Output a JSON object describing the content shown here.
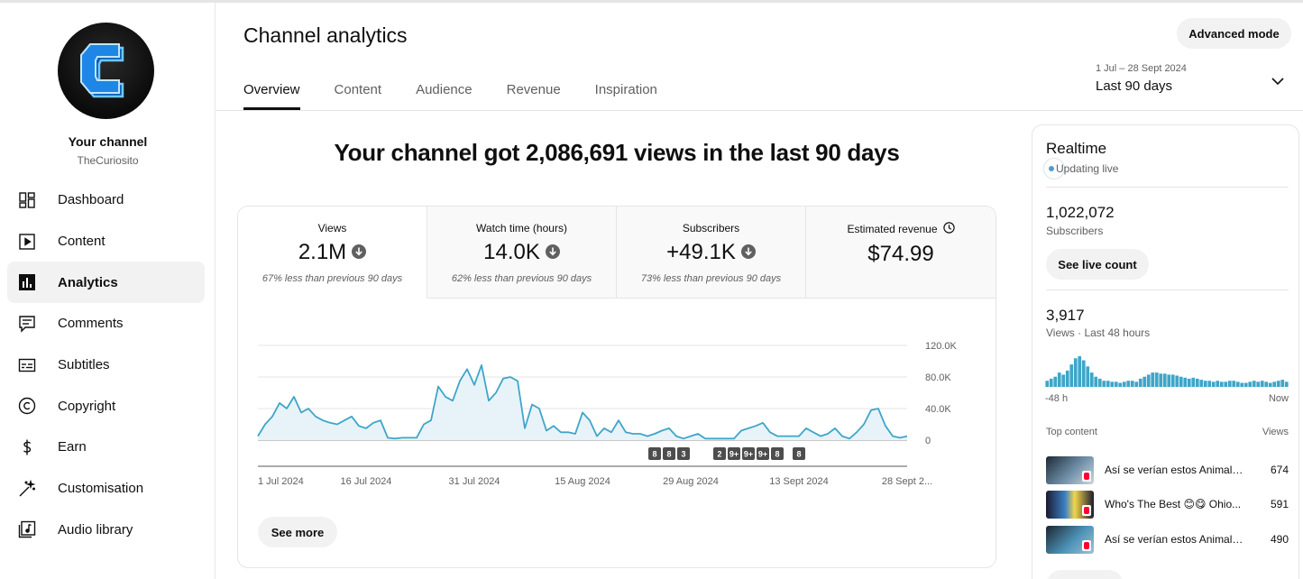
{
  "sidebar": {
    "channel_name": "Your channel",
    "channel_handle": "TheCuriosito",
    "items": [
      {
        "label": "Dashboard",
        "icon": "dashboard-icon"
      },
      {
        "label": "Content",
        "icon": "content-icon"
      },
      {
        "label": "Analytics",
        "icon": "analytics-icon",
        "active": true
      },
      {
        "label": "Comments",
        "icon": "comments-icon"
      },
      {
        "label": "Subtitles",
        "icon": "subtitles-icon"
      },
      {
        "label": "Copyright",
        "icon": "copyright-icon"
      },
      {
        "label": "Earn",
        "icon": "earn-icon"
      },
      {
        "label": "Customisation",
        "icon": "customisation-icon"
      },
      {
        "label": "Audio library",
        "icon": "audio-library-icon"
      }
    ]
  },
  "header": {
    "title": "Channel analytics",
    "advanced_mode": "Advanced mode",
    "tabs": [
      "Overview",
      "Content",
      "Audience",
      "Revenue",
      "Inspiration"
    ],
    "active_tab": "Overview",
    "date_range": {
      "sub": "1 Jul – 28 Sept 2024",
      "main": "Last 90 days"
    }
  },
  "headline": "Your channel got 2,086,691 views in the last 90 days",
  "metrics": [
    {
      "label": "Views",
      "value": "2.1M",
      "trend": "down",
      "note": "67% less than previous 90 days"
    },
    {
      "label": "Watch time (hours)",
      "value": "14.0K",
      "trend": "down",
      "note": "62% less than previous 90 days"
    },
    {
      "label": "Subscribers",
      "value": "+49.1K",
      "trend": "down",
      "note": "73% less than previous 90 days"
    },
    {
      "label": "Estimated revenue",
      "value": "$74.99",
      "trend": "",
      "note": ""
    }
  ],
  "see_more": "See more",
  "chart_data": {
    "type": "area",
    "series": [
      {
        "values": [
          5000,
          20000,
          30000,
          47000,
          40000,
          55000,
          35000,
          40000,
          30000,
          25000,
          22000,
          20000,
          25000,
          30000,
          18000,
          15000,
          22000,
          25000,
          3000,
          2000,
          3000,
          3000,
          3000,
          20000,
          25000,
          68000,
          55000,
          50000,
          75000,
          90000,
          70000,
          95000,
          50000,
          60000,
          78000,
          80000,
          75000,
          15000,
          45000,
          40000,
          12000,
          18000,
          10000,
          10000,
          8000,
          35000,
          25000,
          5000,
          15000,
          10000,
          25000,
          10000,
          8000,
          8000,
          5000,
          8000,
          12000,
          15000,
          5000,
          2000,
          5000,
          8000,
          2000,
          2000,
          2000,
          2000,
          2000,
          12000,
          15000,
          18000,
          22000,
          10000,
          5000,
          5000,
          5000,
          5000,
          15000,
          10000,
          5000,
          8000,
          15000,
          5000,
          2000,
          10000,
          20000,
          38000,
          40000,
          18000,
          5000,
          3000,
          5000
        ]
      }
    ],
    "x_tick_labels": [
      "1 Jul 2024",
      "16 Jul 2024",
      "31 Jul 2024",
      "15 Aug 2024",
      "29 Aug 2024",
      "13 Sept 2024",
      "28 Sept 2..."
    ],
    "y_tick_labels": [
      "120.0K",
      "80.0K",
      "40.0K",
      "0"
    ],
    "ylim": [
      0,
      120000
    ],
    "grid": true,
    "badges": [
      {
        "day": 55,
        "text": "8"
      },
      {
        "day": 57,
        "text": "8"
      },
      {
        "day": 59,
        "text": "3"
      },
      {
        "day": 64,
        "text": "2"
      },
      {
        "day": 66,
        "text": "9+"
      },
      {
        "day": 68,
        "text": "9+"
      },
      {
        "day": 70,
        "text": "9+"
      },
      {
        "day": 72,
        "text": "8"
      },
      {
        "day": 75,
        "text": "8"
      }
    ],
    "color": "#3ea6c9"
  },
  "realtime": {
    "title": "Realtime",
    "status": "Updating live",
    "subscribers_value": "1,022,072",
    "subscribers_label": "Subscribers",
    "live_count_button": "See live count",
    "views_value": "3,917",
    "views_label": "Views · Last 48 hours",
    "bars": [
      6,
      8,
      10,
      14,
      12,
      16,
      22,
      28,
      30,
      26,
      20,
      14,
      10,
      8,
      6,
      6,
      5,
      5,
      4,
      5,
      6,
      6,
      5,
      8,
      10,
      12,
      14,
      14,
      13,
      13,
      12,
      12,
      11,
      10,
      9,
      8,
      9,
      8,
      7,
      6,
      6,
      5,
      6,
      5,
      5,
      6,
      6,
      5,
      4,
      4,
      5,
      6,
      5,
      6,
      5,
      4,
      5,
      6,
      7,
      5
    ],
    "axis_start": "-48 h",
    "axis_end": "Now",
    "top_content_label": "Top content",
    "views_col_label": "Views",
    "top_content": [
      {
        "title": "Así se verían estos Animales...",
        "views": "674",
        "thumb_color": "#6f8fa8"
      },
      {
        "title": "Who's The Best 😊😋 Ohio...",
        "views": "591",
        "thumb_color": "#3b7fc4"
      },
      {
        "title": "Así se verían estos Animales...",
        "views": "490",
        "thumb_color": "#4b91b5"
      }
    ]
  }
}
